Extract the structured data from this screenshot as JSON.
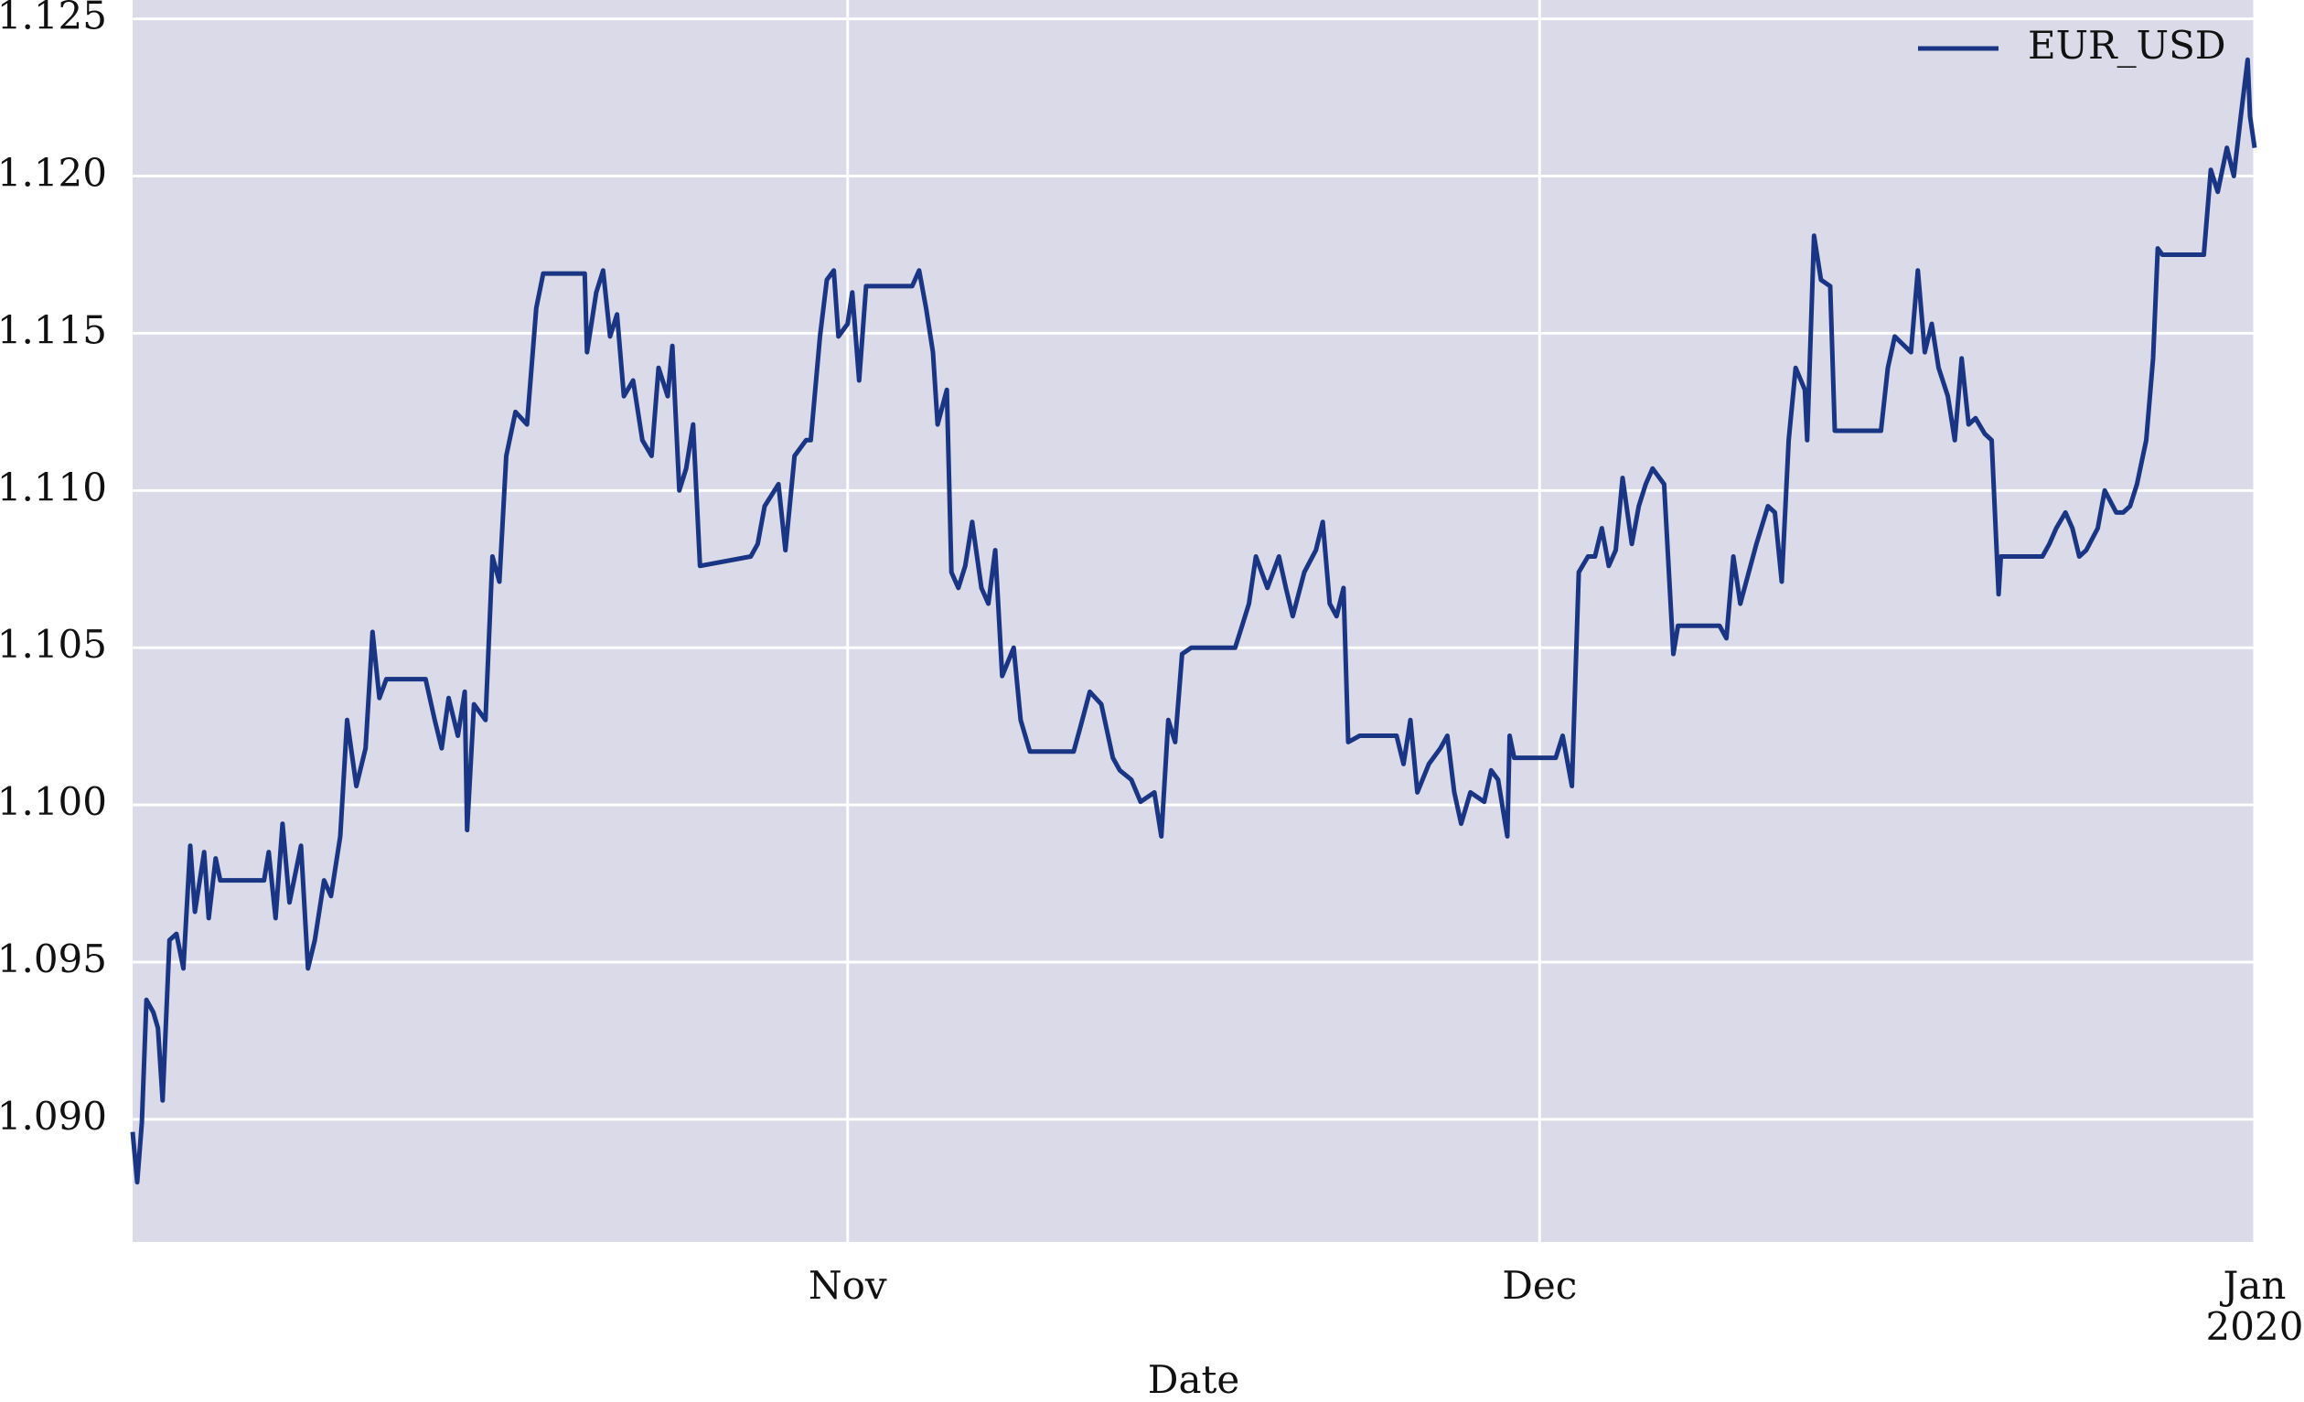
{
  "chart_data": {
    "type": "line",
    "xlabel": "Date",
    "x": [
      0.0,
      0.2,
      0.4,
      0.6,
      0.9,
      1.1,
      1.3,
      1.6,
      1.9,
      2.2,
      2.5,
      2.7,
      3.1,
      3.3,
      3.6,
      3.8,
      5.7,
      5.9,
      6.2,
      6.5,
      6.8,
      7.3,
      7.6,
      7.9,
      8.3,
      8.6,
      9.0,
      9.3,
      9.7,
      10.1,
      10.4,
      10.7,
      11.0,
      12.7,
      13.1,
      13.4,
      13.7,
      14.1,
      14.4,
      14.5,
      14.8,
      15.3,
      15.6,
      15.9,
      16.2,
      16.6,
      17.1,
      17.5,
      17.8,
      19.6,
      19.7,
      20.1,
      20.4,
      20.7,
      21.0,
      21.3,
      21.7,
      22.1,
      22.5,
      22.8,
      23.2,
      23.4,
      23.7,
      24.0,
      24.3,
      24.6,
      26.8,
      27.1,
      27.4,
      28.0,
      28.3,
      28.7,
      29.2,
      29.4,
      29.8,
      30.1,
      30.4,
      30.6,
      31.0,
      31.2,
      31.5,
      31.8,
      33.8,
      34.1,
      34.4,
      34.7,
      34.9,
      35.3,
      35.5,
      35.8,
      36.1,
      36.4,
      36.8,
      37.1,
      37.4,
      37.7,
      38.2,
      38.5,
      38.9,
      40.8,
      41.1,
      41.5,
      42.0,
      42.5,
      42.8,
      43.3,
      43.7,
      44.3,
      44.6,
      44.9,
      45.2,
      45.5,
      45.9,
      47.8,
      48.1,
      48.4,
      48.7,
      49.2,
      49.7,
      50.0,
      50.3,
      50.8,
      51.3,
      51.6,
      51.9,
      52.2,
      52.5,
      52.7,
      53.2,
      54.8,
      55.1,
      55.4,
      55.7,
      56.2,
      56.7,
      57.0,
      57.3,
      57.6,
      58.0,
      58.6,
      58.9,
      59.2,
      59.6,
      59.7,
      59.9,
      61.7,
      62.0,
      62.4,
      62.7,
      63.1,
      63.4,
      63.7,
      64.0,
      64.3,
      64.6,
      65.0,
      65.3,
      65.6,
      65.9,
      66.4,
      66.8,
      67.0,
      68.8,
      69.1,
      69.4,
      69.7,
      70.4,
      70.9,
      71.2,
      71.5,
      71.8,
      72.1,
      72.5,
      72.6,
      72.9,
      73.2,
      73.6,
      73.8,
      75.8,
      76.1,
      76.4,
      77.1,
      77.4,
      77.7,
      78.0,
      78.3,
      78.7,
      79.0,
      79.3,
      79.6,
      79.9,
      80.3,
      80.6,
      80.9,
      81.0,
      82.8,
      83.1,
      83.4,
      83.8,
      84.1,
      84.4,
      84.7,
      85.2,
      85.5,
      86.0,
      86.3,
      86.6,
      86.9,
      87.3,
      87.6,
      87.8,
      88.0,
      89.8,
      90.1,
      90.4,
      90.8,
      91.1,
      91.4,
      91.7,
      91.8,
      92.0
    ],
    "series": [
      {
        "name": "EUR_USD",
        "color": "#1a3583",
        "values": [
          1.0896,
          1.088,
          1.0899,
          1.0938,
          1.0934,
          1.0929,
          1.0906,
          1.0957,
          1.0959,
          1.0948,
          1.0987,
          1.0966,
          1.0985,
          1.0964,
          1.0983,
          1.0976,
          1.0976,
          1.0985,
          1.0964,
          1.0994,
          1.0969,
          1.0987,
          1.0948,
          1.0957,
          1.0976,
          1.0971,
          1.099,
          1.1027,
          1.1006,
          1.1018,
          1.1055,
          1.1034,
          1.104,
          1.104,
          1.1027,
          1.1018,
          1.1034,
          1.1022,
          1.1036,
          1.0992,
          1.1032,
          1.1027,
          1.1079,
          1.1071,
          1.1111,
          1.1125,
          1.1121,
          1.1158,
          1.1169,
          1.1169,
          1.1144,
          1.1163,
          1.117,
          1.1149,
          1.1156,
          1.113,
          1.1135,
          1.1116,
          1.1111,
          1.1139,
          1.113,
          1.1146,
          1.11,
          1.1107,
          1.1121,
          1.1076,
          1.1079,
          1.1083,
          1.1095,
          1.1102,
          1.1081,
          1.1111,
          1.1116,
          1.1116,
          1.1149,
          1.1167,
          1.117,
          1.1149,
          1.1153,
          1.1163,
          1.1135,
          1.1165,
          1.1165,
          1.117,
          1.1158,
          1.1144,
          1.1121,
          1.1132,
          1.1074,
          1.1069,
          1.1076,
          1.109,
          1.1069,
          1.1064,
          1.1081,
          1.1041,
          1.105,
          1.1027,
          1.1017,
          1.1017,
          1.1025,
          1.1036,
          1.1032,
          1.1015,
          1.1011,
          1.1008,
          1.1001,
          1.1004,
          1.099,
          1.1027,
          1.102,
          1.1048,
          1.105,
          1.105,
          1.1057,
          1.1064,
          1.1079,
          1.1069,
          1.1079,
          1.1069,
          1.106,
          1.1074,
          1.1081,
          1.109,
          1.1064,
          1.106,
          1.1069,
          1.102,
          1.1022,
          1.1022,
          1.1013,
          1.1027,
          1.1004,
          1.1013,
          1.1018,
          1.1022,
          1.1004,
          1.0994,
          1.1004,
          1.1001,
          1.1011,
          1.1008,
          1.099,
          1.1022,
          1.1015,
          1.1015,
          1.1022,
          1.1006,
          1.1074,
          1.1079,
          1.1079,
          1.1088,
          1.1076,
          1.1081,
          1.1104,
          1.1083,
          1.1095,
          1.1102,
          1.1107,
          1.1102,
          1.1048,
          1.1057,
          1.1057,
          1.1053,
          1.1079,
          1.1064,
          1.1083,
          1.1095,
          1.1093,
          1.1071,
          1.1116,
          1.1139,
          1.1132,
          1.1116,
          1.1181,
          1.1167,
          1.1165,
          1.1119,
          1.1119,
          1.1139,
          1.1149,
          1.1144,
          1.117,
          1.1144,
          1.1153,
          1.1139,
          1.113,
          1.1116,
          1.1142,
          1.1121,
          1.1123,
          1.1118,
          1.1116,
          1.1067,
          1.1079,
          1.1079,
          1.1083,
          1.1088,
          1.1093,
          1.1088,
          1.1079,
          1.1081,
          1.1088,
          1.11,
          1.1093,
          1.1093,
          1.1095,
          1.1102,
          1.1116,
          1.1142,
          1.1177,
          1.1175,
          1.1175,
          1.1202,
          1.1195,
          1.1209,
          1.12,
          1.1219,
          1.1237,
          1.1219,
          1.1209
        ]
      }
    ],
    "xlim": [
      0,
      92
    ],
    "xticks": [
      {
        "value": 31,
        "label": "Nov"
      },
      {
        "value": 61,
        "label": "Dec"
      },
      {
        "value": 92,
        "label": "Jan\n2020"
      }
    ],
    "ylim": [
      1.0861,
      1.1256
    ],
    "yticks": [
      {
        "value": 1.09,
        "label": "1.090"
      },
      {
        "value": 1.095,
        "label": "1.095"
      },
      {
        "value": 1.1,
        "label": "1.100"
      },
      {
        "value": 1.105,
        "label": "1.105"
      },
      {
        "value": 1.11,
        "label": "1.110"
      },
      {
        "value": 1.115,
        "label": "1.115"
      },
      {
        "value": 1.12,
        "label": "1.120"
      },
      {
        "value": 1.125,
        "label": "1.125"
      }
    ],
    "grid": true,
    "legend": "upper right",
    "background": "#dadae8"
  }
}
